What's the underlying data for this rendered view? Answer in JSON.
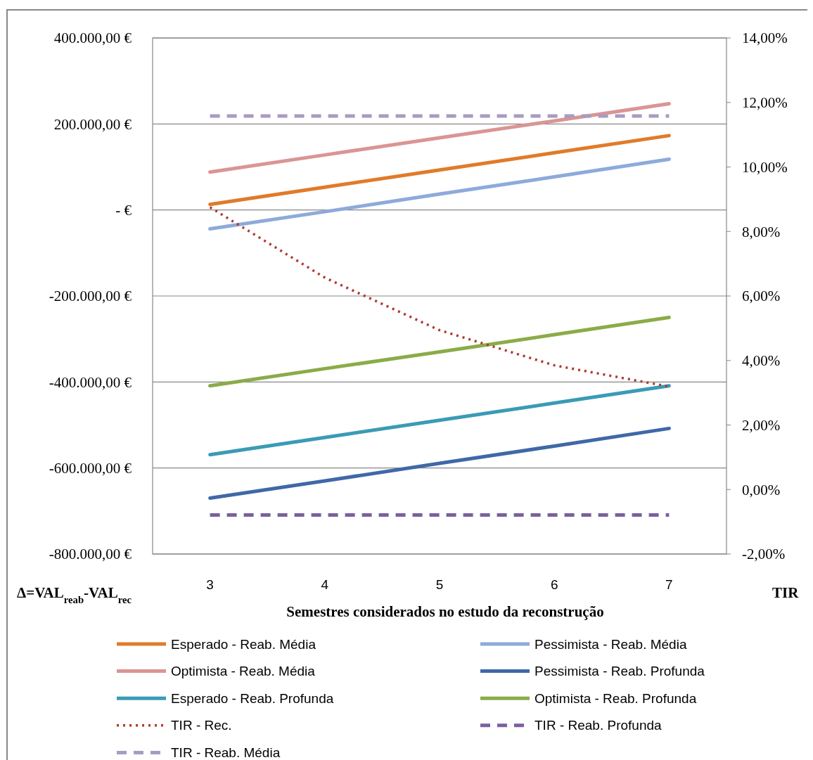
{
  "chart_data": {
    "type": "line",
    "xlabel": "Semestres considerados no estudo  da reconstrução",
    "ylabel": "Δ=VAL$_{reab}$-VAL$_{rec}$",
    "y2label": "TIR",
    "categories": [
      "3",
      "4",
      "5",
      "6",
      "7"
    ],
    "ylim": [
      -800000,
      400000
    ],
    "yticks": [
      {
        "value": -800000,
        "label": "-800.000,00 €"
      },
      {
        "value": -600000,
        "label": "-600.000,00 €"
      },
      {
        "value": -400000,
        "label": "-400.000,00 €"
      },
      {
        "value": -200000,
        "label": "-200.000,00 €"
      },
      {
        "value": 0,
        "label": "-   €"
      },
      {
        "value": 200000,
        "label": "200.000,00 €"
      },
      {
        "value": 400000,
        "label": "400.000,00 €"
      }
    ],
    "y2lim": [
      -2,
      14
    ],
    "y2ticks": [
      {
        "value": -2,
        "label": "-2,00%"
      },
      {
        "value": 0,
        "label": "0,00%"
      },
      {
        "value": 2,
        "label": "2,00%"
      },
      {
        "value": 4,
        "label": "4,00%"
      },
      {
        "value": 6,
        "label": "6,00%"
      },
      {
        "value": 8,
        "label": "8,00%"
      },
      {
        "value": 10,
        "label": "10,00%"
      },
      {
        "value": 12,
        "label": "12,00%"
      },
      {
        "value": 14,
        "label": "14,00%"
      }
    ],
    "grid": "y",
    "legend": "bottom",
    "series": [
      {
        "name": "Esperado - Reab. Média",
        "color": "#e07b2a",
        "values": [
          13000,
          53000,
          93000,
          133000,
          173000
        ]
      },
      {
        "name": "Pessimista - Reab. Média",
        "color": "#8eaadb",
        "values": [
          -44000,
          -4000,
          37000,
          77000,
          118000
        ]
      },
      {
        "name": "Optimista - Reab. Média",
        "color": "#d99594",
        "values": [
          88000,
          128000,
          168000,
          207000,
          247000
        ]
      },
      {
        "name": "Pessimista - Reab. Profunda",
        "color": "#4068a8",
        "values": [
          -670000,
          -630000,
          -589000,
          -549000,
          -508000
        ]
      },
      {
        "name": "Esperado - Reab. Profunda",
        "color": "#3a9bb5",
        "values": [
          -569000,
          -529000,
          -489000,
          -449000,
          -409000
        ]
      },
      {
        "name": "Optimista - Reab. Profunda",
        "color": "#8aac48",
        "values": [
          -409000,
          -369000,
          -330000,
          -290000,
          -250000
        ]
      },
      {
        "name": "TIR - Rec.",
        "color": "#b03a2e",
        "axis": "y2",
        "line_style": "dotted",
        "values": [
          8.75,
          6.57,
          4.94,
          3.85,
          3.19
        ]
      },
      {
        "name": "TIR - Reab. Profunda",
        "color": "#7b5fa0",
        "axis": "y2",
        "line_style": "dashed",
        "values": [
          -0.79,
          -0.79,
          -0.79,
          -0.79,
          -0.79
        ]
      },
      {
        "name": "TIR - Reab. Média",
        "color": "#a99bc3",
        "axis": "y2",
        "line_style": "dashed",
        "values": [
          11.58,
          11.58,
          11.58,
          11.58,
          11.58
        ]
      }
    ]
  }
}
